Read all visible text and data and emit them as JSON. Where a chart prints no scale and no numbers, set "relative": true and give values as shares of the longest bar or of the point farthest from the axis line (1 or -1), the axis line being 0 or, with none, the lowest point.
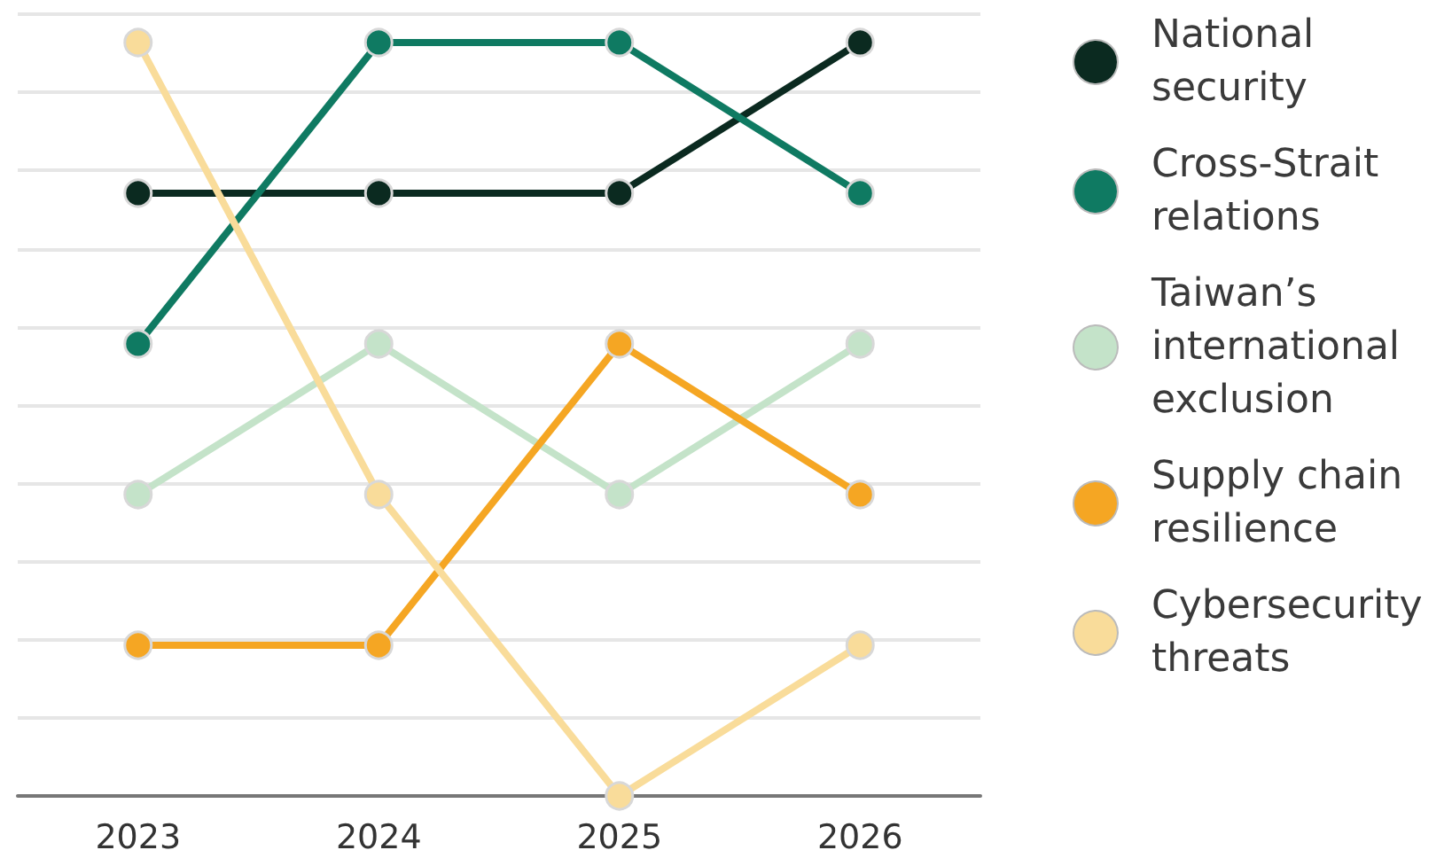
{
  "chart_data": {
    "type": "line",
    "relative": true,
    "categories": [
      "2023",
      "2024",
      "2025",
      "2026"
    ],
    "series": [
      {
        "name": "National security",
        "color": "#0b2a20",
        "values": [
          0.8,
          0.8,
          0.8,
          1
        ]
      },
      {
        "name": "Cross-Strait relations",
        "color": "#0f7a62",
        "values": [
          0.6,
          1,
          1,
          0.8
        ]
      },
      {
        "name": "Taiwan’s international exclusion",
        "color": "#c4e3c9",
        "values": [
          0.4,
          0.6,
          0.4,
          0.6
        ]
      },
      {
        "name": "Supply chain resilience",
        "color": "#f5a623",
        "values": [
          0.2,
          0.2,
          0.6,
          0.4
        ]
      },
      {
        "name": "Cybersecurity threats",
        "color": "#f9dc9a",
        "values": [
          1,
          0.4,
          0,
          0.2
        ]
      }
    ],
    "grid": "y",
    "legend": "right",
    "marker": "circle",
    "line_style": "solid"
  }
}
